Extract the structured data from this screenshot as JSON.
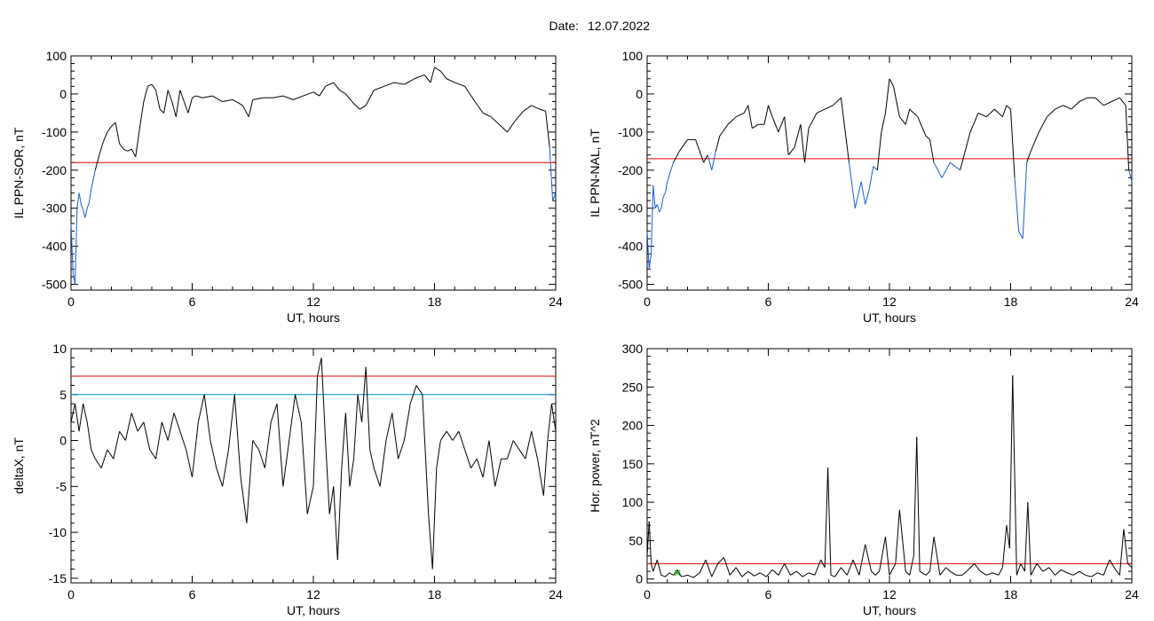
{
  "header": {
    "date_label": "Date:",
    "date_value": "12.07.2022"
  },
  "colors": {
    "trace": "#000000",
    "below_threshold": "#1560d8",
    "threshold_red": "#e00000",
    "threshold_cyan": "#0090c0",
    "marker_green": "#00b000"
  },
  "chart_data": [
    {
      "id": "sor",
      "type": "line",
      "xlabel": "UT, hours",
      "ylabel": "IL PPN-SOR, nT",
      "xlim": [
        0,
        24
      ],
      "ylim": [
        -515,
        100
      ],
      "xticks": [
        0,
        6,
        12,
        18,
        24
      ],
      "yticks": [
        100,
        0,
        -100,
        -200,
        -300,
        -400,
        -500
      ],
      "xtick_labels": [
        "0",
        "6",
        "12",
        "18",
        "24"
      ],
      "ytick_labels": [
        "100",
        "0",
        "-100",
        "-200",
        "-300",
        "-400",
        "-500"
      ],
      "thresholds": [
        {
          "value": -180,
          "color": "#e00000"
        }
      ],
      "lower_color": "#1560d8",
      "series": [
        {
          "x": [
            0,
            0.1,
            0.2,
            0.3,
            0.4,
            0.5,
            0.6,
            0.7,
            0.8,
            0.9,
            1.0,
            1.2,
            1.4,
            1.6,
            1.8,
            2.0,
            2.2,
            2.4,
            2.6,
            2.8,
            3.0,
            3.2,
            3.4,
            3.6,
            3.8,
            4.0,
            4.2,
            4.4,
            4.6,
            4.8,
            5.0,
            5.2,
            5.4,
            5.6,
            5.8,
            6.0,
            6.2,
            6.5,
            7.0,
            7.5,
            8.0,
            8.5,
            8.8,
            9.0,
            9.5,
            10.0,
            10.5,
            11.0,
            11.5,
            12.0,
            12.3,
            12.6,
            13.0,
            13.3,
            13.6,
            14.0,
            14.3,
            14.6,
            15.0,
            15.5,
            16.0,
            16.5,
            17.0,
            17.5,
            17.8,
            18.0,
            18.3,
            18.6,
            19.0,
            19.5,
            20.0,
            20.4,
            20.8,
            21.2,
            21.6,
            22.0,
            22.4,
            22.8,
            23.2,
            23.5,
            23.7,
            23.85,
            24.0
          ],
          "y": [
            -340,
            -470,
            -500,
            -300,
            -260,
            -290,
            -305,
            -325,
            -300,
            -285,
            -250,
            -200,
            -160,
            -125,
            -100,
            -85,
            -75,
            -130,
            -145,
            -150,
            -145,
            -165,
            -90,
            -20,
            20,
            25,
            10,
            -40,
            -50,
            10,
            -20,
            -60,
            10,
            -20,
            -50,
            -10,
            -5,
            -10,
            -5,
            -20,
            -15,
            -30,
            -60,
            -15,
            -10,
            -10,
            -5,
            -15,
            -5,
            5,
            -5,
            20,
            30,
            10,
            0,
            -25,
            -40,
            -30,
            10,
            20,
            30,
            25,
            40,
            50,
            30,
            70,
            60,
            40,
            30,
            20,
            -20,
            -50,
            -60,
            -80,
            -100,
            -70,
            -45,
            -30,
            -40,
            -45,
            -140,
            -280,
            -260
          ]
        }
      ]
    },
    {
      "id": "nal",
      "type": "line",
      "xlabel": "UT, hours",
      "ylabel": "IL PPN-NAL, nT",
      "xlim": [
        0,
        24
      ],
      "ylim": [
        -515,
        100
      ],
      "xticks": [
        0,
        6,
        12,
        18,
        24
      ],
      "yticks": [
        100,
        0,
        -100,
        -200,
        -300,
        -400,
        -500
      ],
      "xtick_labels": [
        "0",
        "6",
        "12",
        "18",
        "24"
      ],
      "ytick_labels": [
        "100",
        "0",
        "-100",
        "-200",
        "-300",
        "-400",
        "-500"
      ],
      "thresholds": [
        {
          "value": -170,
          "color": "#e00000"
        }
      ],
      "lower_color": "#1560d8",
      "series": [
        {
          "x": [
            0,
            0.1,
            0.2,
            0.3,
            0.4,
            0.5,
            0.6,
            0.7,
            0.8,
            0.9,
            1.0,
            1.3,
            1.6,
            2.0,
            2.4,
            2.8,
            3.0,
            3.2,
            3.4,
            3.6,
            4.0,
            4.4,
            4.8,
            5.0,
            5.2,
            5.5,
            5.8,
            6.0,
            6.2,
            6.5,
            6.8,
            7.0,
            7.3,
            7.6,
            7.8,
            8.0,
            8.4,
            8.8,
            9.2,
            9.6,
            10.0,
            10.3,
            10.6,
            10.8,
            11.0,
            11.2,
            11.4,
            11.6,
            11.8,
            12.0,
            12.2,
            12.5,
            12.8,
            13.0,
            13.4,
            13.8,
            14.0,
            14.2,
            14.6,
            15.0,
            15.5,
            16.0,
            16.4,
            16.8,
            17.2,
            17.6,
            17.8,
            18.0,
            18.2,
            18.4,
            18.6,
            18.8,
            19.0,
            19.4,
            19.8,
            20.2,
            20.6,
            21.0,
            21.4,
            21.8,
            22.2,
            22.6,
            23.0,
            23.4,
            23.7,
            23.85,
            24.0
          ],
          "y": [
            -360,
            -460,
            -420,
            -240,
            -300,
            -290,
            -310,
            -300,
            -270,
            -260,
            -230,
            -180,
            -150,
            -120,
            -120,
            -180,
            -160,
            -200,
            -150,
            -110,
            -80,
            -60,
            -50,
            -30,
            -90,
            -80,
            -80,
            -30,
            -60,
            -100,
            -60,
            -160,
            -140,
            -80,
            -180,
            -90,
            -50,
            -40,
            -30,
            -10,
            -180,
            -300,
            -230,
            -290,
            -250,
            -190,
            -200,
            -100,
            -50,
            40,
            20,
            -60,
            -80,
            -40,
            -60,
            -110,
            -120,
            -180,
            -220,
            -180,
            -200,
            -100,
            -50,
            -60,
            -40,
            -60,
            -30,
            -40,
            -220,
            -360,
            -380,
            -180,
            -150,
            -100,
            -60,
            -40,
            -30,
            -40,
            -20,
            -10,
            -10,
            -30,
            -20,
            -10,
            -30,
            -200,
            -230
          ]
        }
      ]
    },
    {
      "id": "deltax",
      "type": "line",
      "xlabel": "UT, hours",
      "ylabel": "deltaX, nT",
      "xlim": [
        0,
        24
      ],
      "ylim": [
        -15.5,
        10
      ],
      "xticks": [
        0,
        6,
        12,
        18,
        24
      ],
      "yticks": [
        10,
        5,
        0,
        -5,
        -10,
        -15
      ],
      "xtick_labels": [
        "0",
        "6",
        "12",
        "18",
        "24"
      ],
      "ytick_labels": [
        "10",
        "5",
        "0",
        "-5",
        "-10",
        "-15"
      ],
      "thresholds": [
        {
          "value": 7,
          "color": "#e00000"
        },
        {
          "value": 5,
          "color": "#0090c0"
        }
      ],
      "series": [
        {
          "x": [
            0,
            0.2,
            0.4,
            0.6,
            0.8,
            1.0,
            1.2,
            1.5,
            1.8,
            2.1,
            2.4,
            2.7,
            3.0,
            3.3,
            3.6,
            3.9,
            4.2,
            4.5,
            4.8,
            5.1,
            5.4,
            5.7,
            6.0,
            6.3,
            6.6,
            6.9,
            7.2,
            7.5,
            7.8,
            8.1,
            8.4,
            8.7,
            9.0,
            9.3,
            9.6,
            9.9,
            10.2,
            10.5,
            10.8,
            11.1,
            11.4,
            11.7,
            12.0,
            12.2,
            12.4,
            12.6,
            12.8,
            13.0,
            13.2,
            13.4,
            13.6,
            13.8,
            14.0,
            14.2,
            14.4,
            14.6,
            14.8,
            15.0,
            15.3,
            15.6,
            15.9,
            16.2,
            16.5,
            16.8,
            17.1,
            17.4,
            17.7,
            17.9,
            18.1,
            18.3,
            18.6,
            18.9,
            19.2,
            19.5,
            19.8,
            20.1,
            20.4,
            20.7,
            21.0,
            21.3,
            21.6,
            21.9,
            22.2,
            22.5,
            22.8,
            23.1,
            23.4,
            23.6,
            23.8,
            24.0
          ],
          "y": [
            2,
            4,
            1,
            4,
            2,
            -1,
            -2,
            -3,
            -1,
            -2,
            1,
            0,
            3,
            1,
            2,
            -1,
            -2,
            2,
            0,
            3,
            1,
            -1,
            -4,
            2,
            5,
            0,
            -3,
            -5,
            -1,
            5,
            -4,
            -9,
            0,
            -1,
            -3,
            2,
            4,
            -5,
            0,
            5,
            2,
            -8,
            -5,
            7,
            9,
            0,
            -8,
            -5,
            -13,
            -3,
            3,
            -5,
            -2,
            5,
            2,
            8,
            -1,
            -3,
            -5,
            0,
            3,
            -2,
            0,
            4,
            6,
            5,
            -8,
            -14,
            -3,
            0,
            1,
            0,
            1,
            -1,
            -3,
            -2,
            -4,
            0,
            -5,
            -2,
            -2,
            0,
            -1,
            -2,
            1,
            -2,
            -6,
            0,
            4,
            1
          ]
        }
      ]
    },
    {
      "id": "power",
      "type": "line",
      "xlabel": "UT, hours",
      "ylabel": "Hor. power, nT^2",
      "xlim": [
        0,
        24
      ],
      "ylim": [
        -5,
        300
      ],
      "xticks": [
        0,
        6,
        12,
        18,
        24
      ],
      "yticks": [
        300,
        250,
        200,
        150,
        100,
        50,
        0
      ],
      "xtick_labels": [
        "0",
        "6",
        "12",
        "18",
        "24"
      ],
      "ytick_labels": [
        "300",
        "250",
        "200",
        "150",
        "100",
        "50",
        "0"
      ],
      "thresholds": [
        {
          "value": 20,
          "color": "#e00000"
        }
      ],
      "series": [
        {
          "x": [
            0,
            0.1,
            0.2,
            0.3,
            0.5,
            0.7,
            0.9,
            1.1,
            1.3,
            1.5,
            1.7,
            2.0,
            2.3,
            2.6,
            2.9,
            3.2,
            3.5,
            3.8,
            4.1,
            4.4,
            4.7,
            5.0,
            5.3,
            5.6,
            5.9,
            6.2,
            6.5,
            6.8,
            7.1,
            7.4,
            7.7,
            8.0,
            8.3,
            8.6,
            8.8,
            8.95,
            9.1,
            9.3,
            9.6,
            9.9,
            10.2,
            10.5,
            10.8,
            11.1,
            11.3,
            11.5,
            11.8,
            12.0,
            12.3,
            12.5,
            12.8,
            13.0,
            13.2,
            13.35,
            13.5,
            13.8,
            14.0,
            14.2,
            14.5,
            14.8,
            15.0,
            15.3,
            15.6,
            15.9,
            16.2,
            16.5,
            16.8,
            17.1,
            17.4,
            17.6,
            17.8,
            17.95,
            18.1,
            18.3,
            18.5,
            18.7,
            18.85,
            19.0,
            19.3,
            19.6,
            19.9,
            20.2,
            20.5,
            20.8,
            21.1,
            21.4,
            21.7,
            22.0,
            22.3,
            22.6,
            22.9,
            23.2,
            23.4,
            23.6,
            23.8,
            24.0
          ],
          "y": [
            30,
            75,
            20,
            10,
            25,
            5,
            3,
            8,
            5,
            12,
            3,
            5,
            2,
            8,
            25,
            3,
            20,
            28,
            5,
            15,
            3,
            10,
            4,
            8,
            3,
            12,
            5,
            20,
            5,
            10,
            3,
            8,
            5,
            25,
            15,
            145,
            5,
            3,
            15,
            5,
            25,
            5,
            45,
            10,
            5,
            10,
            55,
            5,
            20,
            90,
            10,
            5,
            30,
            185,
            10,
            5,
            10,
            55,
            5,
            15,
            10,
            5,
            5,
            12,
            20,
            10,
            5,
            8,
            5,
            15,
            70,
            40,
            265,
            5,
            20,
            10,
            100,
            5,
            20,
            10,
            15,
            5,
            12,
            8,
            5,
            10,
            5,
            3,
            8,
            5,
            25,
            12,
            5,
            65,
            20,
            15
          ]
        }
      ],
      "marker": {
        "x": 1.5,
        "y": 8,
        "color": "#00b000"
      }
    }
  ]
}
